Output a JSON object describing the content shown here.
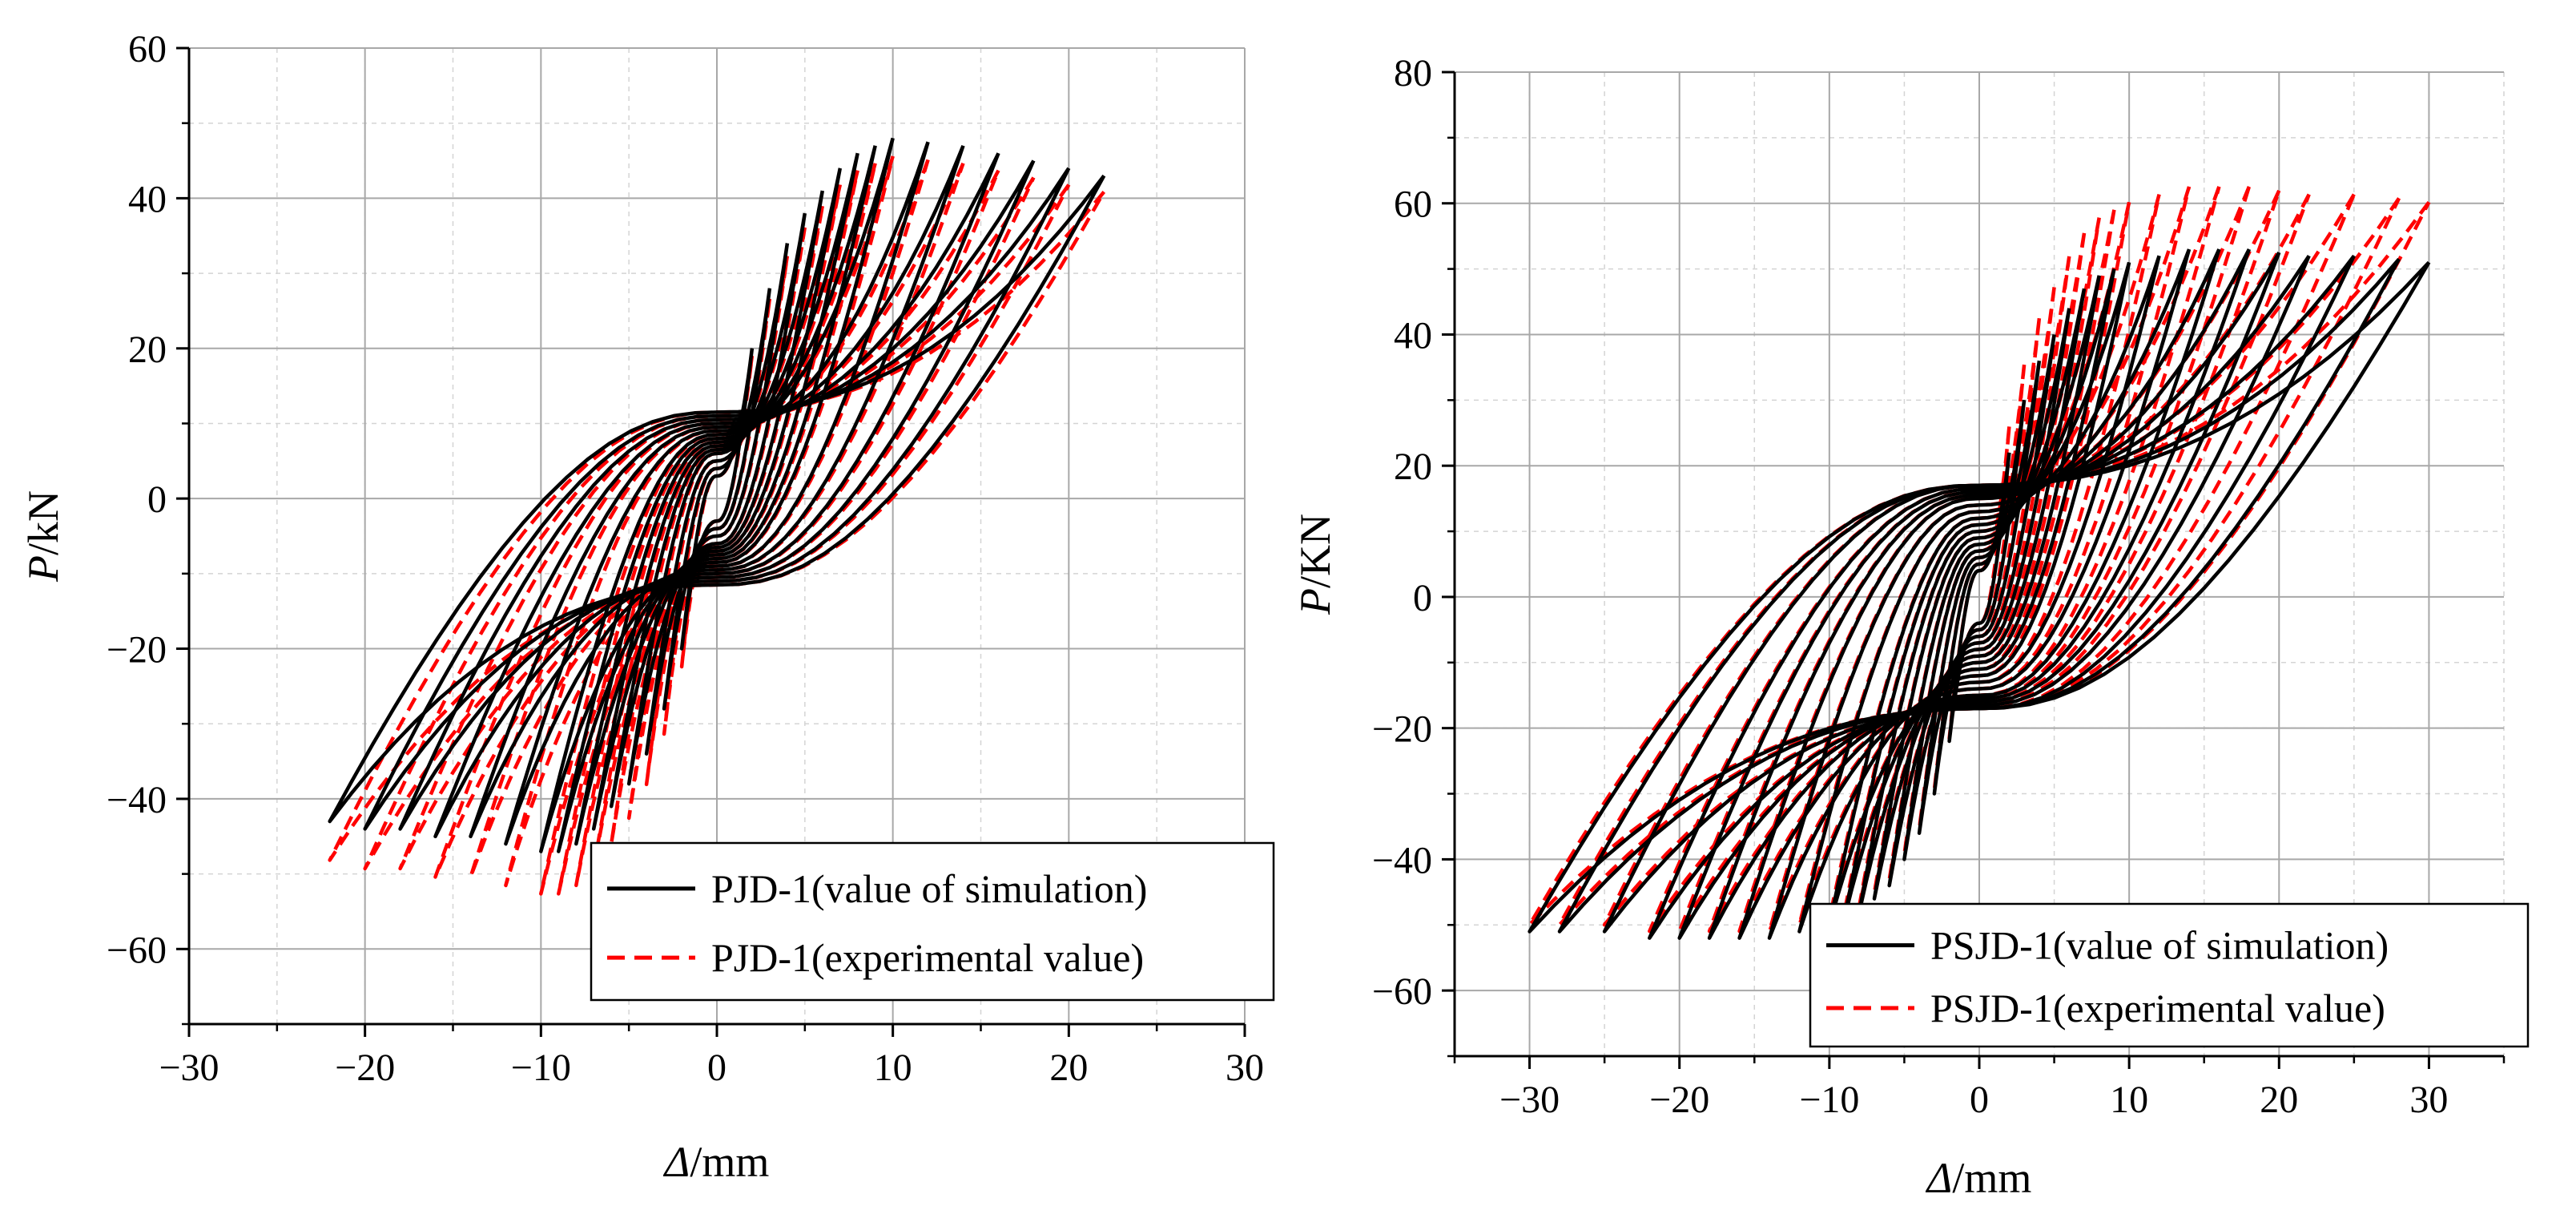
{
  "chart_data": [
    {
      "type": "line",
      "title": "",
      "xlabel": "Δ/mm",
      "xlabel_italic": "Δ",
      "xlabel_rest": "/mm",
      "ylabel": "P/kN",
      "ylabel_italic": "P",
      "ylabel_rest": "/kN",
      "xlim": [
        -30,
        30
      ],
      "ylim": [
        -70,
        60
      ],
      "x_ticks": [
        -30,
        -20,
        -10,
        0,
        10,
        20,
        30
      ],
      "y_ticks": [
        -60,
        -40,
        -20,
        0,
        20,
        40,
        60
      ],
      "x_tick_labels": [
        "−30",
        "−20",
        "−10",
        "0",
        "10",
        "20",
        "30"
      ],
      "y_tick_labels": [
        "−60",
        "−40",
        "−20",
        "0",
        "20",
        "40",
        "60"
      ],
      "grid": true,
      "legend_position": "bottom-right",
      "loops": {
        "amplitudes": [
          2,
          3,
          4,
          5,
          6,
          7,
          8,
          9,
          10,
          12,
          14,
          16,
          18,
          20,
          22
        ],
        "peak_load": [
          20,
          28,
          34,
          38,
          41,
          44,
          46,
          47,
          48,
          47.5,
          47,
          46,
          45,
          44,
          43
        ],
        "neg_peak_load": [
          -20,
          -28,
          -34,
          -38,
          -41,
          -44,
          -46,
          -47,
          -47,
          -46,
          -45,
          -45,
          -44,
          -44,
          -43
        ],
        "intercept": [
          3,
          4,
          5,
          6,
          6.5,
          7,
          7.5,
          8,
          8.5,
          9,
          9.5,
          10,
          10.5,
          11,
          11.5
        ]
      },
      "series": [
        {
          "name": "PJD-1(value of simulation)",
          "style": "solid",
          "color": "#000000",
          "peak_scale": 1.0,
          "neg_scale": 1.0
        },
        {
          "name": "PJD-1(experimental value)",
          "style": "dashed",
          "color": "#ff0000",
          "peak_scale": 0.95,
          "neg_scale": 1.12
        }
      ]
    },
    {
      "type": "line",
      "title": "",
      "xlabel": "Δ/mm",
      "xlabel_italic": "Δ",
      "xlabel_rest": "/mm",
      "ylabel": "P/KN",
      "ylabel_italic": "P",
      "ylabel_rest": "/KN",
      "xlim": [
        -35,
        35
      ],
      "ylim": [
        -70,
        80
      ],
      "x_ticks": [
        -30,
        -20,
        -10,
        0,
        10,
        20,
        30
      ],
      "y_ticks": [
        -60,
        -40,
        -20,
        0,
        20,
        40,
        60,
        80
      ],
      "x_tick_labels": [
        "−30",
        "−20",
        "−10",
        "0",
        "10",
        "20",
        "30"
      ],
      "y_tick_labels": [
        "−60",
        "−40",
        "−20",
        "0",
        "20",
        "40",
        "60",
        "80"
      ],
      "grid": true,
      "legend_position": "bottom-right",
      "loops": {
        "amplitudes": [
          2,
          3,
          4,
          5,
          6,
          7,
          8,
          9,
          10,
          12,
          14,
          16,
          18,
          20,
          22,
          25,
          28,
          30
        ],
        "peak_load": [
          22,
          30,
          36,
          40,
          44,
          47,
          49,
          50,
          51,
          52,
          53,
          53,
          53,
          52.5,
          52,
          52,
          51.5,
          51
        ],
        "neg_peak_load": [
          -22,
          -30,
          -36,
          -40,
          -44,
          -46,
          -48,
          -49,
          -50,
          -51,
          -52,
          -52,
          -52,
          -52,
          -52,
          -51,
          -51,
          -51
        ],
        "intercept": [
          4,
          5,
          6,
          7,
          8,
          9,
          10,
          11,
          12,
          13,
          14,
          15,
          15.5,
          16,
          16.5,
          17,
          17,
          17
        ]
      },
      "series": [
        {
          "name": "PSJD-1(value of simulation)",
          "style": "solid",
          "color": "#000000",
          "peak_scale": 1.0,
          "neg_scale": 1.0
        },
        {
          "name": "PSJD-1(experimental value)",
          "style": "dashed",
          "color": "#ff0000",
          "peak_scale": 1.18,
          "neg_scale": 0.98
        }
      ]
    }
  ]
}
